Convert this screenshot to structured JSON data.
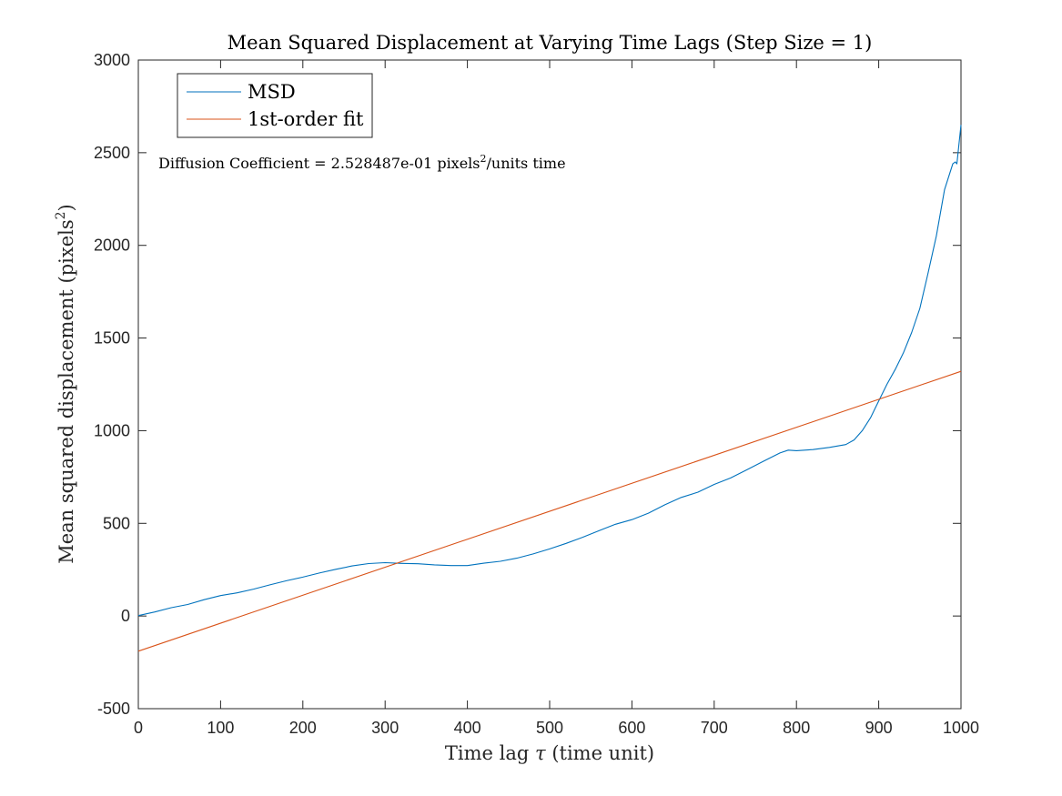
{
  "chart_data": {
    "type": "line",
    "title": "Mean Squared Displacement at Varying Time Lags (Step Size = 1)",
    "xlabel_main": "Time lag ",
    "xlabel_symbol": "τ",
    "xlabel_unit": " (time unit)",
    "ylabel_main": "Mean squared displacement (pixels",
    "ylabel_sup": "2",
    "ylabel_end": ")",
    "xlim": [
      0,
      1000
    ],
    "ylim": [
      -500,
      3000
    ],
    "xticks": [
      0,
      100,
      200,
      300,
      400,
      500,
      600,
      700,
      800,
      900,
      1000
    ],
    "yticks": [
      -500,
      0,
      500,
      1000,
      1500,
      2000,
      2500,
      3000
    ],
    "grid": false,
    "legend_position": "top-left",
    "annotation": {
      "prefix": "Diffusion Coefficient = 2.528487e-01 pixels",
      "sup": "2",
      "suffix": "/units time"
    },
    "series": [
      {
        "name": "MSD",
        "color": "#0072BD",
        "x": [
          0,
          20,
          40,
          60,
          80,
          100,
          120,
          140,
          160,
          180,
          200,
          220,
          240,
          260,
          280,
          300,
          320,
          340,
          360,
          380,
          400,
          420,
          440,
          460,
          480,
          500,
          520,
          540,
          560,
          580,
          600,
          620,
          640,
          660,
          680,
          700,
          720,
          740,
          760,
          780,
          790,
          800,
          820,
          840,
          860,
          870,
          880,
          890,
          900,
          910,
          920,
          930,
          940,
          950,
          960,
          970,
          980,
          990,
          993,
          995,
          1000
        ],
        "y": [
          2,
          22,
          45,
          62,
          88,
          110,
          125,
          145,
          168,
          190,
          210,
          232,
          252,
          270,
          283,
          288,
          284,
          282,
          276,
          272,
          272,
          285,
          295,
          312,
          335,
          362,
          392,
          425,
          460,
          495,
          520,
          555,
          600,
          640,
          668,
          710,
          745,
          790,
          835,
          880,
          895,
          892,
          898,
          910,
          925,
          950,
          1000,
          1070,
          1160,
          1250,
          1330,
          1420,
          1530,
          1660,
          1850,
          2050,
          2300,
          2440,
          2450,
          2440,
          2650
        ]
      },
      {
        "name": "1st-order fit",
        "color": "#D95319",
        "x": [
          0,
          1000
        ],
        "y": [
          -190,
          1320
        ]
      }
    ]
  }
}
